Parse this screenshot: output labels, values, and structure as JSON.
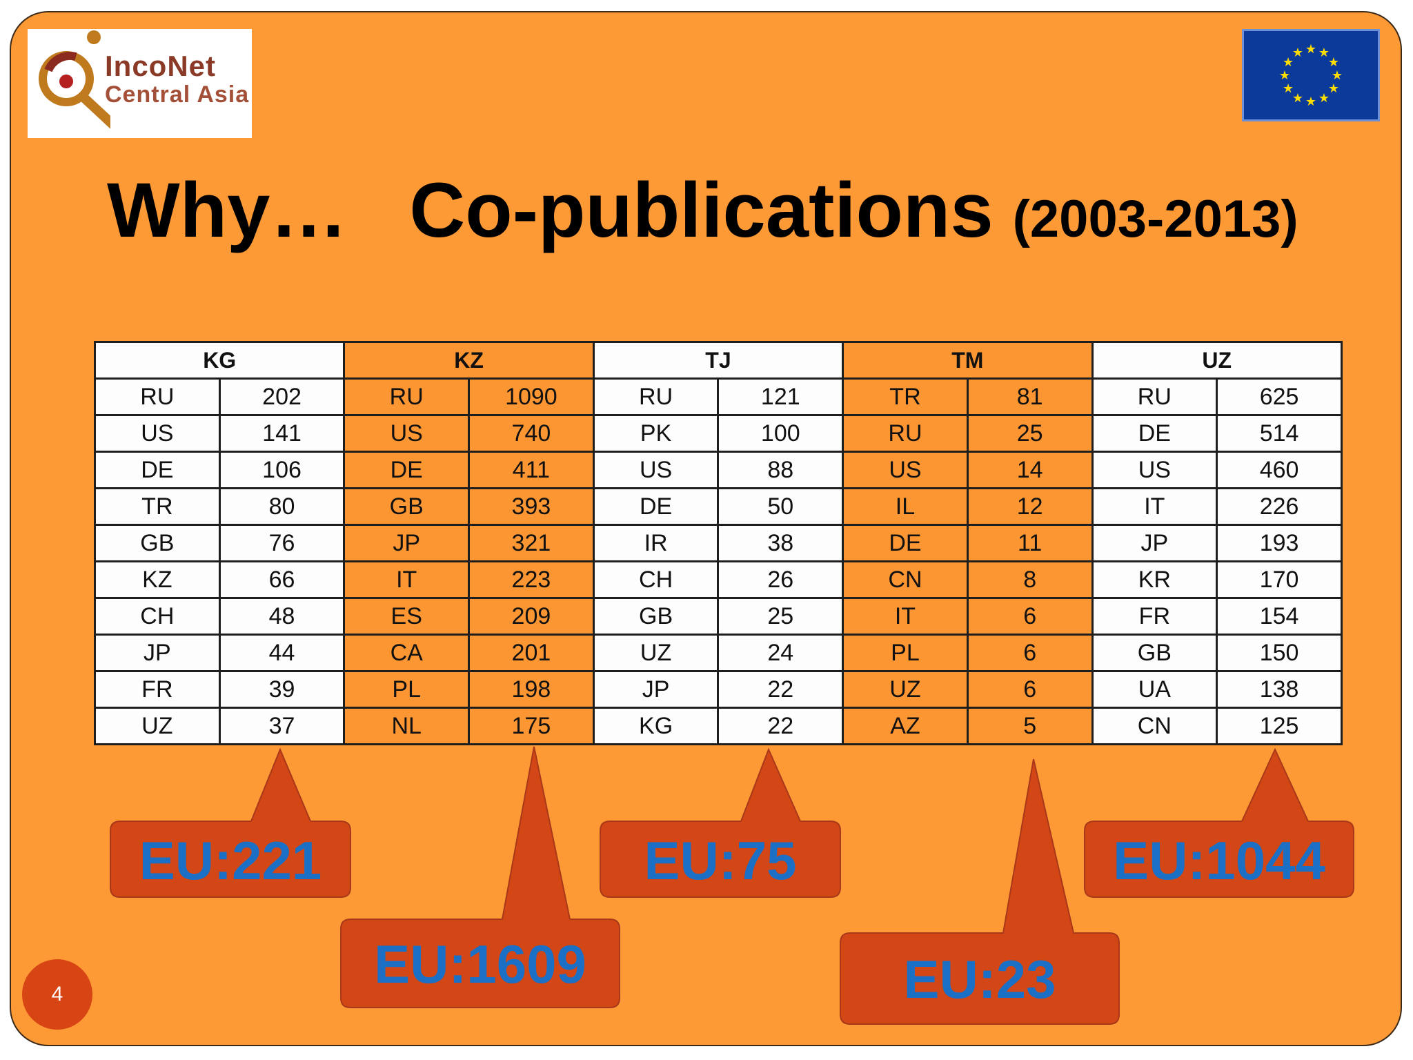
{
  "logo": {
    "line1": "IncoNet",
    "line2": "Central Asia"
  },
  "title": {
    "main_left": "Why…",
    "main_right": "Co-publications",
    "years": "(2003-2013)"
  },
  "table": {
    "columns": [
      {
        "code": "KG",
        "rows": [
          [
            "RU",
            "202"
          ],
          [
            "US",
            "141"
          ],
          [
            "DE",
            "106"
          ],
          [
            "TR",
            "80"
          ],
          [
            "GB",
            "76"
          ],
          [
            "KZ",
            "66"
          ],
          [
            "CH",
            "48"
          ],
          [
            "JP",
            "44"
          ],
          [
            "FR",
            "39"
          ],
          [
            "UZ",
            "37"
          ]
        ]
      },
      {
        "code": "KZ",
        "rows": [
          [
            "RU",
            "1090"
          ],
          [
            "US",
            "740"
          ],
          [
            "DE",
            "411"
          ],
          [
            "GB",
            "393"
          ],
          [
            "JP",
            "321"
          ],
          [
            "IT",
            "223"
          ],
          [
            "ES",
            "209"
          ],
          [
            "CA",
            "201"
          ],
          [
            "PL",
            "198"
          ],
          [
            "NL",
            "175"
          ]
        ]
      },
      {
        "code": "TJ",
        "rows": [
          [
            "RU",
            "121"
          ],
          [
            "PK",
            "100"
          ],
          [
            "US",
            "88"
          ],
          [
            "DE",
            "50"
          ],
          [
            "IR",
            "38"
          ],
          [
            "CH",
            "26"
          ],
          [
            "GB",
            "25"
          ],
          [
            "UZ",
            "24"
          ],
          [
            "JP",
            "22"
          ],
          [
            "KG",
            "22"
          ]
        ]
      },
      {
        "code": "TM",
        "rows": [
          [
            "TR",
            "81"
          ],
          [
            "RU",
            "25"
          ],
          [
            "US",
            "14"
          ],
          [
            "IL",
            "12"
          ],
          [
            "DE",
            "11"
          ],
          [
            "CN",
            "8"
          ],
          [
            "IT",
            "6"
          ],
          [
            "PL",
            "6"
          ],
          [
            "UZ",
            "6"
          ],
          [
            "AZ",
            "5"
          ]
        ]
      },
      {
        "code": "UZ",
        "rows": [
          [
            "RU",
            "625"
          ],
          [
            "DE",
            "514"
          ],
          [
            "US",
            "460"
          ],
          [
            "IT",
            "226"
          ],
          [
            "JP",
            "193"
          ],
          [
            "KR",
            "170"
          ],
          [
            "FR",
            "154"
          ],
          [
            "GB",
            "150"
          ],
          [
            "UA",
            "138"
          ],
          [
            "CN",
            "125"
          ]
        ]
      }
    ]
  },
  "callouts": [
    {
      "country": "KG",
      "label": "EU:221"
    },
    {
      "country": "KZ",
      "label": "EU:1609"
    },
    {
      "country": "TJ",
      "label": "EU:75"
    },
    {
      "country": "TM",
      "label": "EU:23"
    },
    {
      "country": "UZ",
      "label": "EU:1044"
    }
  ],
  "page_number": "4",
  "colors": {
    "background": "#fd9a36",
    "callout_fill": "#d24715",
    "callout_text": "#1b6fc4"
  }
}
